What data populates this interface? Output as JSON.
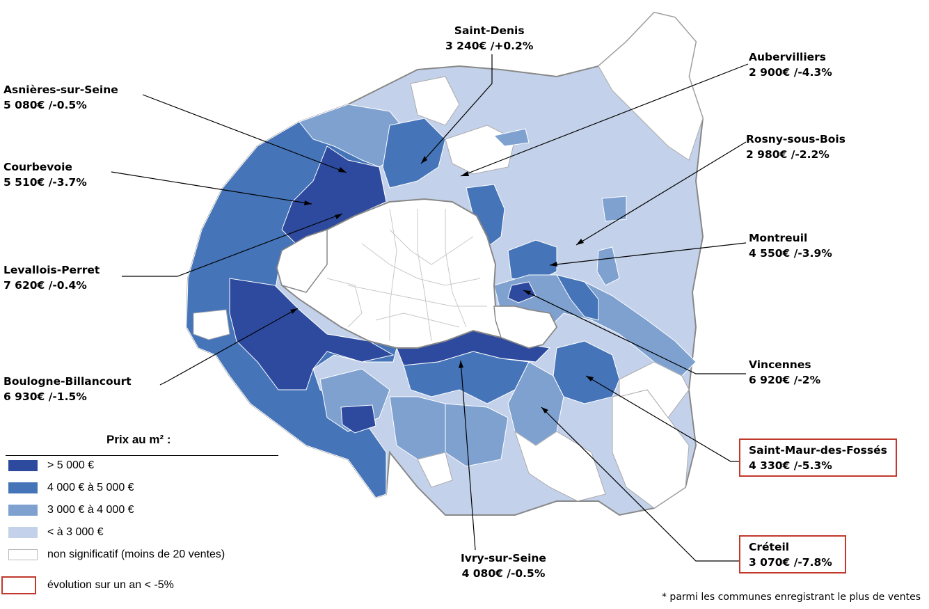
{
  "colors": {
    "above_5000": "#2e4a9e",
    "from_4000_to_5000": "#4574b9",
    "from_3000_to_4000": "#7fa1d0",
    "below_3000": "#c3d2ea",
    "non_significant": "#ffffff",
    "highlight_border": "#c0392b"
  },
  "communes": [
    {
      "id": "saint-denis",
      "name": "Saint-Denis",
      "value": "3 240€ /+0.2%",
      "highlight": false
    },
    {
      "id": "aubervilliers",
      "name": "Aubervilliers",
      "value": "2 900€ /-4.3%",
      "highlight": false
    },
    {
      "id": "asnieres",
      "name": "Asnières-sur-Seine",
      "value": "5 080€ /-0.5%",
      "highlight": false
    },
    {
      "id": "rosny",
      "name": "Rosny-sous-Bois",
      "value": "2 980€ /-2.2%",
      "highlight": false
    },
    {
      "id": "courbevoie",
      "name": "Courbevoie",
      "value": "5 510€ /-3.7%",
      "highlight": false
    },
    {
      "id": "montreuil",
      "name": "Montreuil",
      "value": "4 550€ /-3.9%",
      "highlight": false
    },
    {
      "id": "levallois",
      "name": "Levallois-Perret",
      "value": "7 620€ /-0.4%",
      "highlight": false
    },
    {
      "id": "vincennes",
      "name": "Vincennes",
      "value": "6 920€ /-2%",
      "highlight": false
    },
    {
      "id": "boulogne",
      "name": "Boulogne-Billancourt",
      "value": "6 930€ /-1.5%",
      "highlight": false
    },
    {
      "id": "saint-maur",
      "name": "Saint-Maur-des-Fossés",
      "value": "4 330€ /-5.3%",
      "highlight": true
    },
    {
      "id": "ivry",
      "name": "Ivry-sur-Seine",
      "value": "4 080€ /-0.5%",
      "highlight": false
    },
    {
      "id": "creteil",
      "name": "Créteil",
      "value": "3 070€ /-7.8%",
      "highlight": true
    }
  ],
  "legend": {
    "title": "Prix au m² :",
    "items": [
      {
        "label": "> 5 000 €",
        "color": "#2e4a9e"
      },
      {
        "label": "4 000 € à 5 000 €",
        "color": "#4574b9"
      },
      {
        "label": "3 000 € à 4 000 €",
        "color": "#7fa1d0"
      },
      {
        "label": "< à 3 000 €",
        "color": "#c3d2ea"
      },
      {
        "label": "non significatif (moins de 20 ventes)",
        "color": "#ffffff"
      }
    ],
    "evolution_label": "évolution sur un an < -5%"
  },
  "footnote": "* parmi les communes enregistrant le plus de ventes"
}
